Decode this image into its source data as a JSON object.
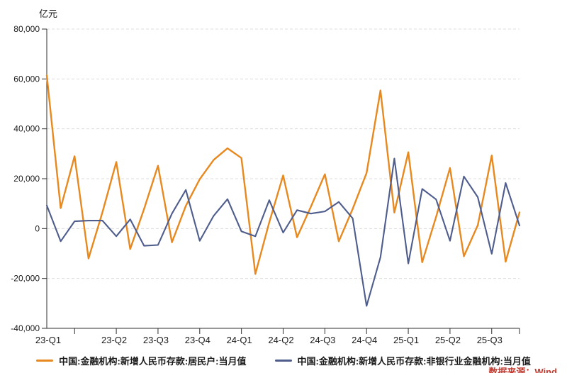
{
  "unit_label": "亿元",
  "source_note": "数据来源：Wind",
  "colors": {
    "household_series": "#e8891f",
    "nonbank_series": "#4f5d8d",
    "gridline": "#dcdcdc",
    "axis": "#2f2f2f",
    "tick_text": "#1a1a1a",
    "source_text": "#c43a2f"
  },
  "legend": [
    {
      "label": "中国:金融机构:新增人民币存款:居民户:当月值",
      "color": "#e8891f"
    },
    {
      "label": "中国:金融机构:新增人民币存款:非银行业金融机构:当月值",
      "color": "#4f5d8d"
    }
  ],
  "chart_data": {
    "type": "line",
    "title": "",
    "xlabel": "",
    "ylabel": "亿元",
    "ylim": [
      -40000,
      80000
    ],
    "y_ticks": [
      80000,
      60000,
      40000,
      20000,
      0,
      -20000,
      -40000
    ],
    "grid": true,
    "legend_position": "bottom",
    "x_frequency": "monthly",
    "x": [
      "2023-01",
      "2023-02",
      "2023-03",
      "2023-04",
      "2023-05",
      "2023-06",
      "2023-07",
      "2023-08",
      "2023-09",
      "2023-10",
      "2023-11",
      "2023-12",
      "2024-01",
      "2024-02",
      "2024-03",
      "2024-04",
      "2024-05",
      "2024-06",
      "2024-07",
      "2024-08",
      "2024-09",
      "2024-10",
      "2024-11",
      "2024-12",
      "2025-01",
      "2025-02",
      "2025-03",
      "2025-04",
      "2025-05",
      "2025-06",
      "2025-07",
      "2025-08",
      "2025-09",
      "2025-10",
      "2025-11"
    ],
    "x_axis_labels": [
      "23-Q1",
      "23-Q2",
      "23-Q3",
      "23-Q4",
      "24-Q1",
      "24-Q2",
      "24-Q3",
      "24-Q4",
      "25-Q1",
      "25-Q2",
      "25-Q3"
    ],
    "series": [
      {
        "name": "中国:金融机构:新增人民币存款:居民户:当月值",
        "color": "#e8891f",
        "values": [
          61500,
          8200,
          29000,
          -12000,
          6500,
          26700,
          -8200,
          7900,
          25200,
          -5500,
          9100,
          19800,
          27500,
          32200,
          28300,
          -18200,
          2500,
          21300,
          -3500,
          8800,
          21800,
          -5100,
          7900,
          22300,
          55400,
          6400,
          30600,
          -13500,
          4700,
          24300,
          -11100,
          1300,
          29300,
          -13300,
          6500
        ]
      },
      {
        "name": "中国:金融机构:新增人民币存款:非银行业金融机构:当月值",
        "color": "#4f5d8d",
        "values": [
          9300,
          -5100,
          2900,
          3200,
          3200,
          -3100,
          3700,
          -6900,
          -6600,
          6000,
          15500,
          -4900,
          5100,
          11800,
          -1100,
          -3100,
          11400,
          -1600,
          7400,
          6000,
          6900,
          10700,
          4100,
          -31000,
          -11500,
          28100,
          -14000,
          15900,
          11700,
          -4900,
          20900,
          12600,
          -10100,
          18300,
          1200
        ]
      }
    ]
  }
}
